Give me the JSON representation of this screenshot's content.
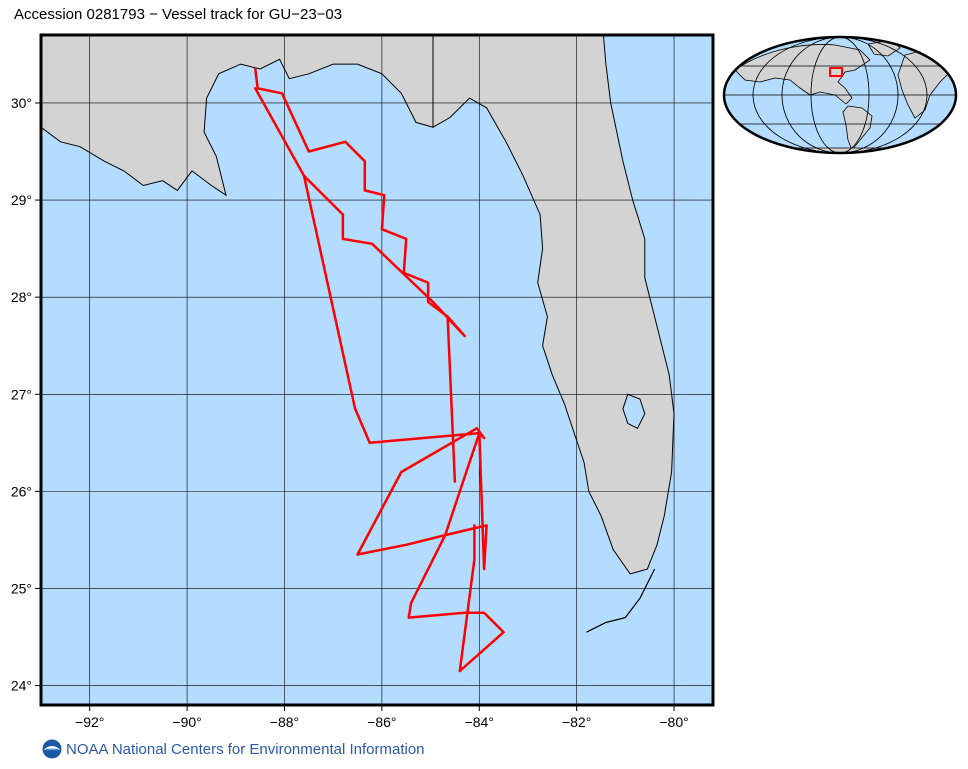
{
  "title": "Accession 0281793 − Vessel track for GU−23−03",
  "footer": {
    "org_name": "NOAA National Centers for Environmental Information",
    "logo_icon": "noaa-logo-icon"
  },
  "colors": {
    "ocean": "#b3dcff",
    "land": "#d3d3d3",
    "track": "#ff0000",
    "coast": "#000000"
  },
  "map": {
    "lon_range": [
      -93,
      -79.2
    ],
    "lat_range": [
      23.8,
      30.7
    ],
    "lon_ticks": [
      {
        "value": -92,
        "label": "−92°"
      },
      {
        "value": -90,
        "label": "−90°"
      },
      {
        "value": -88,
        "label": "−88°"
      },
      {
        "value": -86,
        "label": "−86°"
      },
      {
        "value": -84,
        "label": "−84°"
      },
      {
        "value": -82,
        "label": "−82°"
      },
      {
        "value": -80,
        "label": "−80°"
      }
    ],
    "lat_ticks": [
      {
        "value": 30,
        "label": "30°"
      },
      {
        "value": 29,
        "label": "29°"
      },
      {
        "value": 28,
        "label": "28°"
      },
      {
        "value": 27,
        "label": "27°"
      },
      {
        "value": 26,
        "label": "26°"
      },
      {
        "value": 25,
        "label": "25°"
      },
      {
        "value": 24,
        "label": "24°"
      }
    ],
    "grid": true,
    "vessel_track": [
      [
        -88.6,
        30.35
      ],
      [
        -88.55,
        30.15
      ],
      [
        -88.05,
        30.1
      ],
      [
        -87.5,
        29.5
      ],
      [
        -86.75,
        29.6
      ],
      [
        -86.35,
        29.4
      ],
      [
        -86.35,
        29.1
      ],
      [
        -85.95,
        29.05
      ],
      [
        -86.0,
        28.7
      ],
      [
        -85.5,
        28.6
      ],
      [
        -85.55,
        28.25
      ],
      [
        -85.05,
        28.15
      ],
      [
        -85.05,
        27.95
      ],
      [
        -84.65,
        27.8
      ],
      [
        -84.5,
        26.1
      ],
      [
        -84.65,
        27.8
      ],
      [
        -84.3,
        27.6
      ],
      [
        -84.95,
        27.95
      ],
      [
        -86.2,
        28.55
      ],
      [
        -86.8,
        28.6
      ],
      [
        -86.8,
        28.85
      ],
      [
        -87.6,
        29.25
      ],
      [
        -88.6,
        30.15
      ],
      [
        -87.6,
        29.25
      ],
      [
        -86.55,
        26.85
      ],
      [
        -86.25,
        26.5
      ],
      [
        -84.0,
        26.6
      ],
      [
        -83.9,
        26.55
      ],
      [
        -84.05,
        26.65
      ],
      [
        -85.6,
        26.2
      ],
      [
        -86.5,
        25.35
      ],
      [
        -85.5,
        25.45
      ],
      [
        -84.7,
        25.55
      ],
      [
        -83.85,
        25.65
      ],
      [
        -83.9,
        25.2
      ],
      [
        -84.0,
        26.6
      ],
      [
        -84.7,
        25.55
      ],
      [
        -85.4,
        24.85
      ],
      [
        -85.45,
        24.7
      ],
      [
        -84.3,
        24.75
      ],
      [
        -83.9,
        24.75
      ],
      [
        -83.5,
        24.55
      ],
      [
        -84.4,
        24.15
      ],
      [
        -84.1,
        25.3
      ],
      [
        -84.1,
        25.65
      ]
    ],
    "florida_outline": [
      [
        -84.95,
        30.7
      ],
      [
        -84.95,
        29.75
      ],
      [
        -84.6,
        29.85
      ],
      [
        -84.2,
        30.05
      ],
      [
        -83.85,
        29.95
      ],
      [
        -83.45,
        29.6
      ],
      [
        -83.1,
        29.25
      ],
      [
        -82.75,
        28.85
      ],
      [
        -82.7,
        28.5
      ],
      [
        -82.8,
        28.15
      ],
      [
        -82.6,
        27.8
      ],
      [
        -82.7,
        27.5
      ],
      [
        -82.5,
        27.2
      ],
      [
        -82.25,
        26.9
      ],
      [
        -82.05,
        26.6
      ],
      [
        -81.85,
        26.3
      ],
      [
        -81.75,
        26.0
      ],
      [
        -81.5,
        25.75
      ],
      [
        -81.25,
        25.4
      ],
      [
        -80.9,
        25.15
      ],
      [
        -80.55,
        25.2
      ],
      [
        -80.35,
        25.45
      ],
      [
        -80.2,
        25.75
      ],
      [
        -80.05,
        26.2
      ],
      [
        -80.0,
        26.8
      ],
      [
        -80.1,
        27.2
      ],
      [
        -80.35,
        27.7
      ],
      [
        -80.6,
        28.2
      ],
      [
        -80.6,
        28.6
      ],
      [
        -80.85,
        29.0
      ],
      [
        -81.05,
        29.4
      ],
      [
        -81.3,
        30.0
      ],
      [
        -81.4,
        30.4
      ],
      [
        -81.45,
        30.7
      ]
    ],
    "lake_okeechobee": [
      [
        -80.95,
        27.0
      ],
      [
        -80.7,
        26.95
      ],
      [
        -80.6,
        26.8
      ],
      [
        -80.75,
        26.65
      ],
      [
        -80.95,
        26.7
      ],
      [
        -81.05,
        26.85
      ]
    ],
    "gulf_coast_north": [
      [
        -93.0,
        29.75
      ],
      [
        -92.6,
        29.6
      ],
      [
        -92.2,
        29.55
      ],
      [
        -91.7,
        29.4
      ],
      [
        -91.3,
        29.3
      ],
      [
        -90.9,
        29.15
      ],
      [
        -90.5,
        29.2
      ],
      [
        -90.2,
        29.1
      ],
      [
        -89.9,
        29.3
      ],
      [
        -89.5,
        29.15
      ],
      [
        -89.2,
        29.05
      ],
      [
        -89.4,
        29.45
      ],
      [
        -89.65,
        29.7
      ],
      [
        -89.6,
        30.05
      ],
      [
        -89.35,
        30.3
      ],
      [
        -88.9,
        30.4
      ],
      [
        -88.5,
        30.35
      ],
      [
        -88.1,
        30.45
      ],
      [
        -87.9,
        30.25
      ],
      [
        -87.5,
        30.3
      ],
      [
        -87.0,
        30.4
      ],
      [
        -86.5,
        30.4
      ],
      [
        -86.0,
        30.3
      ],
      [
        -85.6,
        30.1
      ],
      [
        -85.3,
        29.8
      ],
      [
        -84.95,
        29.75
      ],
      [
        -84.95,
        30.7
      ],
      [
        -93.0,
        30.7
      ]
    ],
    "florida_keys": [
      [
        -81.8,
        24.55
      ],
      [
        -81.4,
        24.65
      ],
      [
        -81.0,
        24.7
      ],
      [
        -80.7,
        24.9
      ],
      [
        -80.4,
        25.2
      ]
    ],
    "inset": {
      "name": "world-locator-globe",
      "highlight": {
        "lon_range": [
          -93,
          -79.2
        ],
        "lat_range": [
          23.8,
          30.7
        ]
      }
    }
  }
}
